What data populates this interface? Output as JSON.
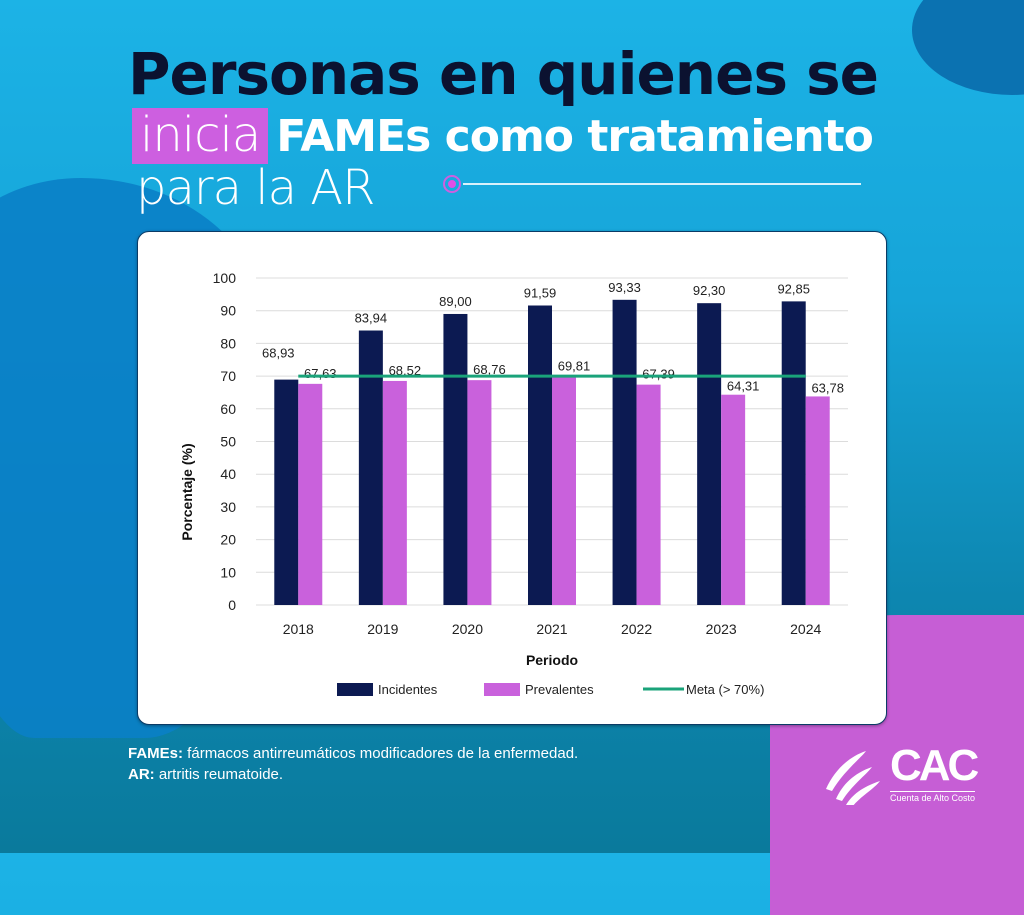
{
  "header": {
    "line1": "Personas en quienes se",
    "line2_highlight": "inicia",
    "line2_bold": "FAMEs como tratamiento",
    "line3": "para la AR"
  },
  "colors": {
    "incidentes": "#0c1a52",
    "prevalentes": "#c961dc",
    "meta": "#1aa37a",
    "grid": "#dcdcdc",
    "highlight": "#cd5fe0"
  },
  "chart_data": {
    "type": "bar",
    "title": "Personas en quienes se inicia FAMEs como tratamiento para la AR",
    "xlabel": "Periodo",
    "ylabel": "Porcentaje (%)",
    "ylim": [
      0,
      100
    ],
    "yticks": [
      "0",
      "10",
      "20",
      "30",
      "40",
      "50",
      "60",
      "70",
      "80",
      "90",
      "100"
    ],
    "grid": true,
    "legend_position": "bottom",
    "categories": [
      "2018",
      "2019",
      "2020",
      "2021",
      "2022",
      "2023",
      "2024"
    ],
    "series": [
      {
        "name": "Incidentes",
        "values": [
          68.93,
          83.94,
          89.0,
          91.59,
          93.33,
          92.3,
          92.85
        ],
        "labels": [
          "68,93",
          "83,94",
          "89,00",
          "91,59",
          "93,33",
          "92,30",
          "92,85"
        ]
      },
      {
        "name": "Prevalentes",
        "values": [
          67.63,
          68.52,
          68.76,
          69.81,
          67.39,
          64.31,
          63.78
        ],
        "labels": [
          "67,63",
          "68,52",
          "68,76",
          "69,81",
          "67,39",
          "64,31",
          "63,78"
        ]
      }
    ],
    "reference_line": {
      "name": "Meta (> 70%)",
      "value": 70
    }
  },
  "footnotes": [
    {
      "term": "FAMEs:",
      "text": " fármacos antirreumáticos modificadores de la enfermedad."
    },
    {
      "term": "AR:",
      "text": " artritis reumatoide."
    }
  ],
  "logo": {
    "name": "CAC",
    "subtitle": "Cuenta de Alto Costo"
  }
}
